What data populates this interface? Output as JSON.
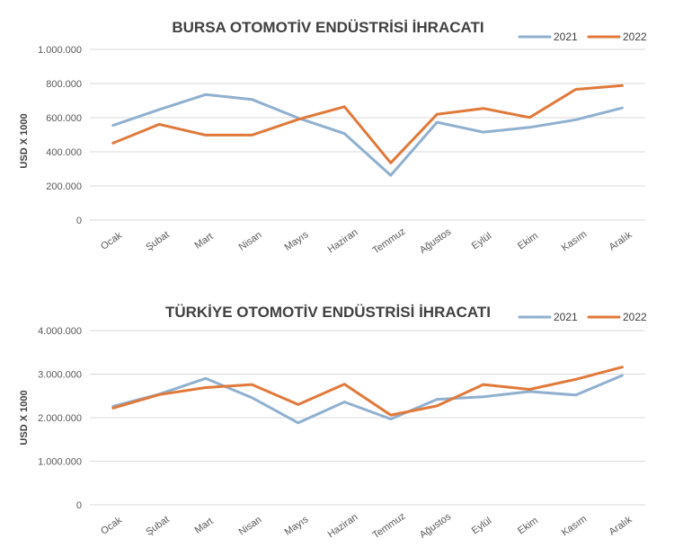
{
  "chart_data": [
    {
      "type": "line",
      "title": "BURSA OTOMOTİV ENDÜSTRİSİ İHRACATI",
      "xlabel": "",
      "ylabel": "USD X 1000",
      "categories": [
        "Ocak",
        "Şubat",
        "Mart",
        "Nisan",
        "Mayıs",
        "Haziran",
        "Temmuz",
        "Ağustos",
        "Eylül",
        "Ekim",
        "Kasım",
        "Aralık"
      ],
      "ylim": [
        0,
        1000000
      ],
      "yticks": [
        0,
        200000,
        400000,
        600000,
        800000,
        1000000
      ],
      "ytick_labels": [
        "0",
        "200.000",
        "400.000",
        "600.000",
        "800.000",
        "1.000.000"
      ],
      "grid": true,
      "legend_position": "top-right",
      "series": [
        {
          "name": "2021",
          "color": "#8fb0cf",
          "values": [
            555000,
            648000,
            735000,
            707000,
            598000,
            507000,
            262000,
            573000,
            515000,
            543000,
            588000,
            657000
          ]
        },
        {
          "name": "2022",
          "color": "#e0793a",
          "values": [
            451000,
            561000,
            498000,
            498000,
            590000,
            664000,
            335000,
            620000,
            654000,
            601000,
            766000,
            788000
          ]
        }
      ]
    },
    {
      "type": "line",
      "title": "TÜRKİYE OTOMOTİV ENDÜSTRİSİ İHRACATI",
      "xlabel": "",
      "ylabel": "USD X 1000",
      "categories": [
        "Ocak",
        "Şubat",
        "Mart",
        "Nisan",
        "Mayıs",
        "Haziran",
        "Temmuz",
        "Ağustos",
        "Eylül",
        "Ekim",
        "Kasım",
        "Aralık"
      ],
      "ylim": [
        0,
        4000000
      ],
      "yticks": [
        0,
        1000000,
        2000000,
        3000000,
        4000000
      ],
      "ytick_labels": [
        "0",
        "1.000.000",
        "2.000.000",
        "3.000.000",
        "4.000.000"
      ],
      "grid": true,
      "legend_position": "top-right",
      "series": [
        {
          "name": "2021",
          "color": "#8fb0cf",
          "values": [
            2260000,
            2540000,
            2900000,
            2460000,
            1880000,
            2360000,
            1970000,
            2420000,
            2480000,
            2600000,
            2520000,
            2970000
          ]
        },
        {
          "name": "2022",
          "color": "#e0793a",
          "values": [
            2220000,
            2530000,
            2690000,
            2760000,
            2300000,
            2770000,
            2060000,
            2270000,
            2760000,
            2650000,
            2880000,
            3160000
          ]
        }
      ]
    }
  ]
}
